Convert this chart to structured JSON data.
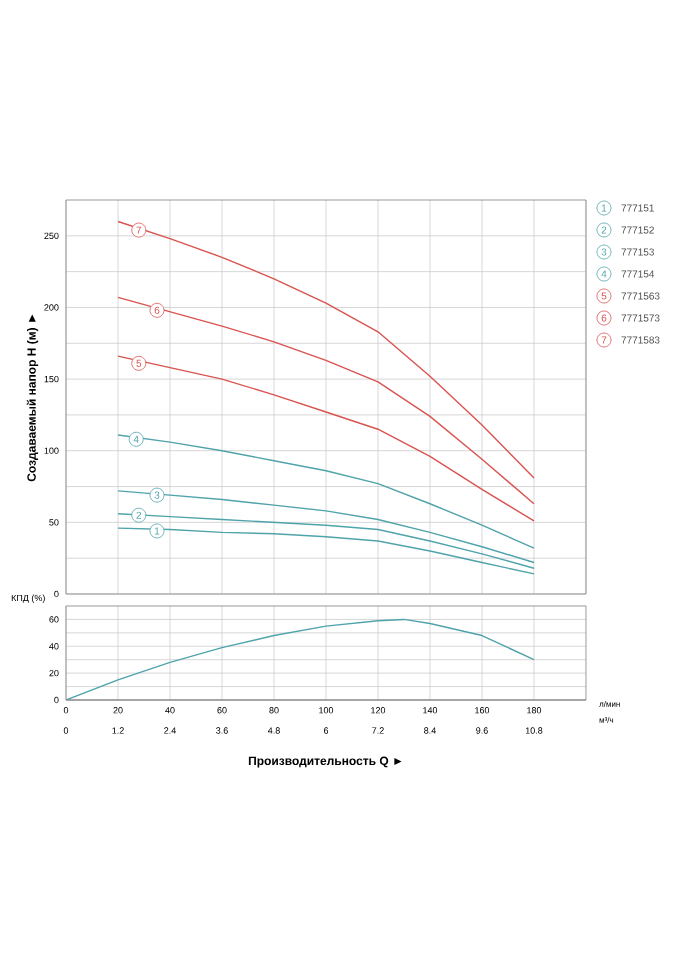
{
  "chart_data": [
    {
      "type": "line",
      "ylabel": "Создаваемый напор H (м) ►",
      "xlim": [
        0,
        200
      ],
      "ylim": [
        0,
        275
      ],
      "xticks": [
        0,
        20,
        40,
        60,
        80,
        100,
        120,
        140,
        160,
        180,
        200
      ],
      "yticks": [
        0,
        {
          "value": 25,
          "label": null
        },
        50,
        {
          "value": 75,
          "label": null
        },
        100,
        {
          "value": 125,
          "label": null
        },
        150,
        {
          "value": 175,
          "label": null
        },
        200,
        {
          "value": 225,
          "label": null
        },
        250
      ],
      "tick_labels": "y",
      "grid": true,
      "legend": "right",
      "marker": "none",
      "line_style": "solid",
      "x": [
        20,
        40,
        60,
        80,
        100,
        120,
        140,
        160,
        180
      ],
      "series": [
        {
          "name": "777151",
          "color": "#4fa3ab",
          "values": [
            46,
            45,
            43,
            42,
            40,
            37,
            30,
            22,
            14
          ]
        },
        {
          "name": "777152",
          "color": "#4fa3ab",
          "values": [
            56,
            54,
            52,
            50,
            48,
            45,
            37,
            28,
            18
          ]
        },
        {
          "name": "777153",
          "color": "#4fa3ab",
          "values": [
            72,
            69,
            66,
            62,
            58,
            52,
            43,
            33,
            22
          ]
        },
        {
          "name": "777154",
          "color": "#4fa3ab",
          "values": [
            111,
            106,
            100,
            93,
            86,
            77,
            63,
            48,
            32
          ]
        },
        {
          "name": "7771563",
          "color": "#d9534f",
          "values": [
            166,
            158,
            150,
            139,
            127,
            115,
            96,
            73,
            51
          ]
        },
        {
          "name": "7771573",
          "color": "#d9534f",
          "values": [
            207,
            197,
            187,
            176,
            163,
            148,
            124,
            94,
            63
          ]
        },
        {
          "name": "7771583",
          "color": "#d9534f",
          "values": [
            260,
            248,
            235,
            220,
            203,
            183,
            152,
            118,
            81
          ]
        }
      ],
      "annotations": [
        {
          "text": "1",
          "x": 35,
          "y": 44
        },
        {
          "text": "2",
          "x": 28,
          "y": 55
        },
        {
          "text": "3",
          "x": 35,
          "y": 69
        },
        {
          "text": "4",
          "x": 27,
          "y": 108
        },
        {
          "text": "5",
          "x": 28,
          "y": 161
        },
        {
          "text": "6",
          "x": 35,
          "y": 198
        },
        {
          "text": "7",
          "x": 28,
          "y": 254
        }
      ]
    },
    {
      "type": "line",
      "ylabel": "КПД (%)",
      "xlabel": "Производительность Q ►",
      "xlim": [
        0,
        200
      ],
      "ylim": [
        0,
        70
      ],
      "xticks": [
        0,
        20,
        40,
        60,
        80,
        100,
        120,
        140,
        160,
        180
      ],
      "x2lim": [
        0,
        12
      ],
      "x2ticks": [
        0,
        1.2,
        2.4,
        3.6,
        4.8,
        6,
        7.2,
        8.4,
        9.6,
        10.8
      ],
      "yticks": [
        0,
        {
          "value": 10,
          "label": null
        },
        20,
        {
          "value": 30,
          "label": null
        },
        40,
        {
          "value": 50,
          "label": null
        },
        60
      ],
      "grid": true,
      "marker": "none",
      "line_style": "solid",
      "x": [
        0,
        20,
        40,
        60,
        80,
        100,
        120,
        130,
        140,
        160,
        180
      ],
      "series": [
        {
          "color": "#4fa3ab",
          "values": [
            0,
            15,
            28,
            39,
            48,
            55,
            59,
            60,
            57,
            48,
            30
          ]
        }
      ],
      "annotations": [
        "л/мин",
        "м³/ч"
      ]
    }
  ]
}
